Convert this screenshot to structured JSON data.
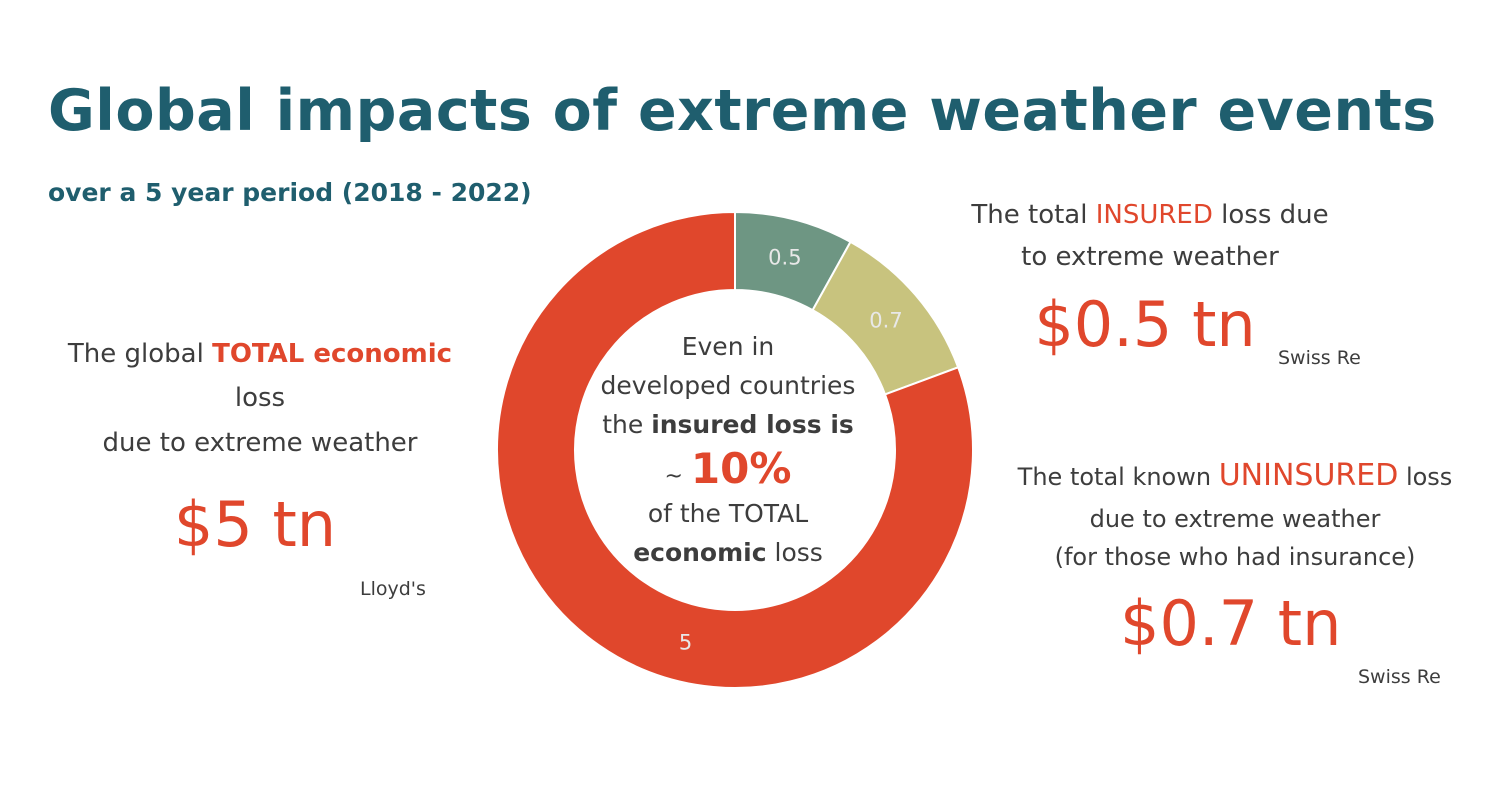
{
  "header": {
    "title": "Global impacts of extreme weather events",
    "subtitle": "over a 5 year period (2018 - 2022)"
  },
  "left_panel": {
    "line1_pre": "The global",
    "line1_hl": "TOTAL economic",
    "line2": "loss",
    "line3": "due to extreme weather",
    "value": "$5 tn",
    "source": "Lloyd's"
  },
  "right_top": {
    "line1_pre": "The total",
    "line1_hl": "INSURED",
    "line1_post": "loss due",
    "line2": "to extreme weather",
    "value": "$0.5 tn",
    "source": "Swiss Re"
  },
  "right_bottom": {
    "line1_pre": "The total known",
    "line1_hl": "UNINSURED",
    "line1_post": "loss",
    "line2": "due to extreme weather",
    "line3": "(for those who had insurance)",
    "value": "$0.7 tn",
    "source": "Swiss Re"
  },
  "center_text": {
    "line1": "Even in",
    "line2": "developed countries",
    "line3_pre": "the",
    "line3_bold": "insured loss is",
    "tilde": "~",
    "percent": "10%",
    "line5": "of the TOTAL",
    "line6_bold": "economic",
    "line6_post": "loss"
  },
  "chart_data": {
    "type": "pie",
    "donut": true,
    "title": "",
    "slices": [
      {
        "label": "0.5",
        "value": 0.5,
        "color": "#6e9683"
      },
      {
        "label": "0.7",
        "value": 0.7,
        "color": "#c8c37e"
      },
      {
        "label": "5",
        "value": 5,
        "color": "#e0472c"
      }
    ]
  }
}
